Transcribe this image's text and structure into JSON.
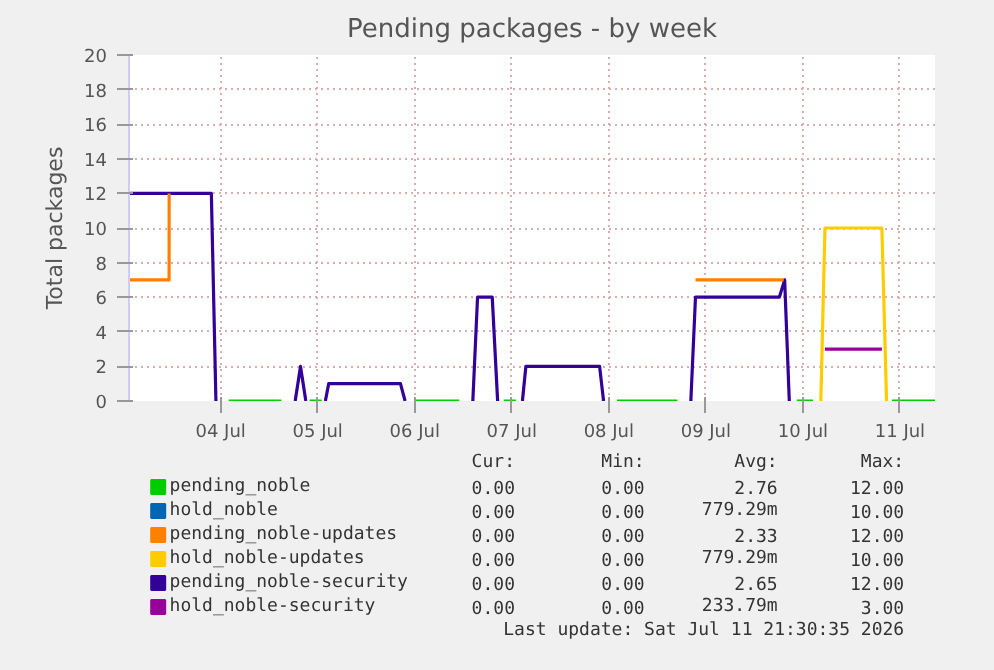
{
  "chart_data": {
    "type": "line",
    "title": "Pending packages - by week",
    "ylabel": "Total packages",
    "xlim": [
      "2026-07-03T13:20",
      "2026-07-11T20:40"
    ],
    "xticks": [
      {
        "value": "2026-07-04T12:00",
        "label": "04 Jul"
      },
      {
        "value": "2026-07-05T12:00",
        "label": "05 Jul"
      },
      {
        "value": "2026-07-06T12:00",
        "label": "06 Jul"
      },
      {
        "value": "2026-07-07T12:00",
        "label": "07 Jul"
      },
      {
        "value": "2026-07-08T12:00",
        "label": "08 Jul"
      },
      {
        "value": "2026-07-09T12:00",
        "label": "09 Jul"
      },
      {
        "value": "2026-07-10T12:00",
        "label": "10 Jul"
      },
      {
        "value": "2026-07-11T12:00",
        "label": "11 Jul"
      }
    ],
    "ylim": [
      0,
      20
    ],
    "yticks": [
      0,
      2,
      4,
      6,
      8,
      10,
      12,
      14,
      16,
      18,
      20
    ],
    "grid": true,
    "legend": "bottom",
    "marker": "none",
    "line_style": "solid",
    "series": [
      {
        "name": "pending_noble",
        "color": "#00cc00",
        "x": [
          "2026-07-04T14:00",
          "2026-07-05T03:00",
          "2026-07-05T08:00",
          "2026-07-05T10:00",
          "2026-07-05T13:00",
          "2026-07-06T00:00",
          "2026-07-06T12:00",
          "2026-07-06T23:00",
          "2026-07-07T09:00",
          "2026-07-07T10:00",
          "2026-07-07T13:00",
          "2026-07-08T00:00",
          "2026-07-08T14:00",
          "2026-07-09T05:00",
          "2026-07-10T00:00",
          "2026-07-10T10:30",
          "2026-07-10T14:30",
          "2026-07-11T00:00",
          "2026-07-11T10:00",
          "2026-07-11T20:40"
        ],
        "values": [
          0,
          0,
          null,
          0,
          0,
          null,
          0,
          0,
          null,
          0,
          0,
          null,
          0,
          0,
          null,
          0,
          0,
          null,
          0,
          0
        ]
      },
      {
        "name": "hold_noble",
        "color": "#0066b3"
      },
      {
        "name": "pending_noble-updates",
        "color": "#ff8000",
        "x": [
          "2026-07-03T13:20",
          "2026-07-03T23:15",
          "2026-07-03T23:16",
          "2026-07-05T00:00",
          "2026-07-09T09:26",
          "2026-07-10T07:15"
        ],
        "values": [
          7,
          7,
          12,
          null,
          7,
          7
        ]
      },
      {
        "name": "hold_noble-updates",
        "color": "#ffcc00",
        "x": [
          "2026-07-10T16:26",
          "2026-07-10T17:27",
          "2026-07-11T07:32",
          "2026-07-11T08:41"
        ],
        "values": [
          0,
          10,
          10,
          0
        ]
      },
      {
        "name": "pending_noble-security",
        "color": "#330099",
        "x": [
          "2026-07-03T13:20",
          "2026-07-04T09:42",
          "2026-07-04T10:50",
          "2026-07-05T00:00",
          "2026-07-05T06:26",
          "2026-07-05T07:45",
          "2026-07-05T09:04",
          "2026-07-05T11:00",
          "2026-07-05T13:54",
          "2026-07-05T14:43",
          "2026-07-06T08:28",
          "2026-07-06T09:37",
          "2026-07-06T18:00",
          "2026-07-07T02:22",
          "2026-07-07T03:32",
          "2026-07-07T07:10",
          "2026-07-07T08:30",
          "2026-07-07T11:00",
          "2026-07-07T14:38",
          "2026-07-07T15:29",
          "2026-07-08T09:43",
          "2026-07-08T10:42",
          "2026-07-09T00:00",
          "2026-07-09T08:17",
          "2026-07-09T09:26",
          "2026-07-10T06:10",
          "2026-07-10T07:29",
          "2026-07-10T08:38"
        ],
        "values": [
          12,
          12,
          0,
          null,
          0,
          2,
          0,
          null,
          0,
          1,
          1,
          0,
          null,
          0,
          6,
          6,
          0,
          null,
          0,
          2,
          2,
          0,
          null,
          0,
          6,
          6,
          7,
          0
        ]
      },
      {
        "name": "hold_noble-security",
        "color": "#990099",
        "x": [
          "2026-07-10T17:27",
          "2026-07-11T07:32"
        ],
        "values": [
          3,
          3
        ]
      }
    ],
    "annotations": [
      "Cur:",
      "Min:",
      "Avg:",
      "Max:",
      "0.00",
      "0.00",
      "2.76",
      "12.00",
      "0.00",
      "0.00",
      "779.29m",
      "10.00",
      "0.00",
      "0.00",
      "2.33",
      "12.00",
      "0.00",
      "0.00",
      "779.29m",
      "10.00",
      "0.00",
      "0.00",
      "2.65",
      "12.00",
      "0.00",
      "0.00",
      "233.79m",
      "3.00",
      "Last update: Sat Jul 11 21:30:35 2026"
    ]
  }
}
